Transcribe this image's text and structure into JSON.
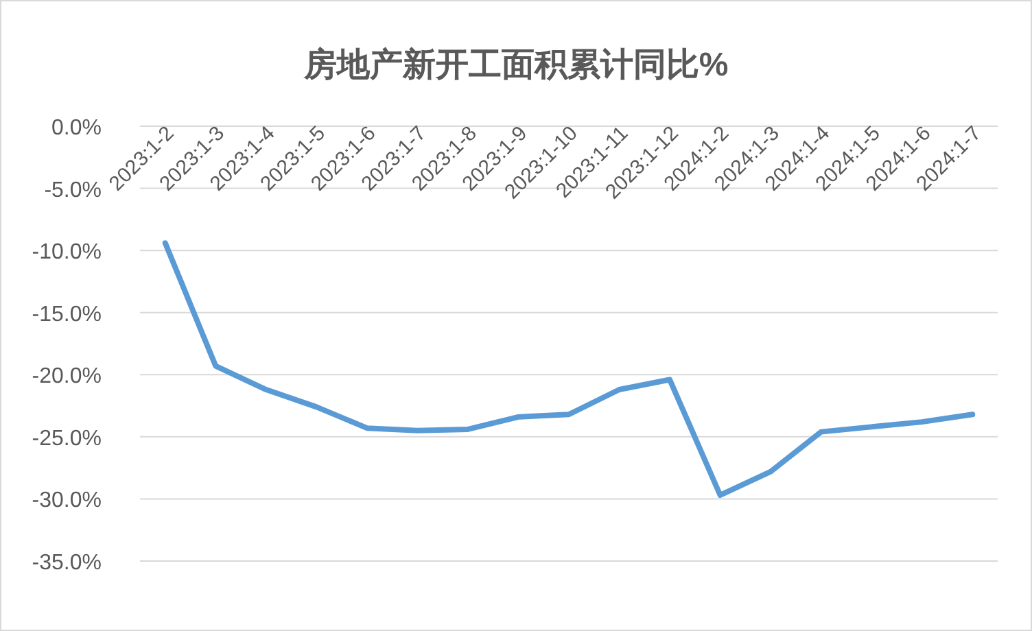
{
  "chart_data": {
    "type": "line",
    "title": "房地产新开工面积累计同比%",
    "categories": [
      "2023:1-2",
      "2023:1-3",
      "2023:1-4",
      "2023:1-5",
      "2023:1-6",
      "2023:1-7",
      "2023:1-8",
      "2023:1-9",
      "2023:1-10",
      "2023:1-11",
      "2023:1-12",
      "2024:1-2",
      "2024:1-3",
      "2024:1-4",
      "2024:1-5",
      "2024:1-6",
      "2024:1-7"
    ],
    "series": [
      {
        "color": "#5b9bd5",
        "values": [
          -9.4,
          -19.3,
          -21.2,
          -22.6,
          -24.3,
          -24.5,
          -24.4,
          -23.4,
          -23.2,
          -21.2,
          -20.4,
          -29.7,
          -27.8,
          -24.6,
          -24.2,
          -23.8,
          -23.2
        ]
      }
    ],
    "ylim": [
      -35,
      0
    ],
    "yticks": [
      {
        "value": 0,
        "label": "0.0%"
      },
      {
        "value": -5,
        "label": "-5.0%"
      },
      {
        "value": -10,
        "label": "-10.0%"
      },
      {
        "value": -15,
        "label": "-15.0%"
      },
      {
        "value": -20,
        "label": "-20.0%"
      },
      {
        "value": -25,
        "label": "-25.0%"
      },
      {
        "value": -30,
        "label": "-30.0%"
      },
      {
        "value": -35,
        "label": "-35.0%"
      }
    ],
    "grid": "y",
    "marker": "none",
    "line_style": "solid"
  }
}
